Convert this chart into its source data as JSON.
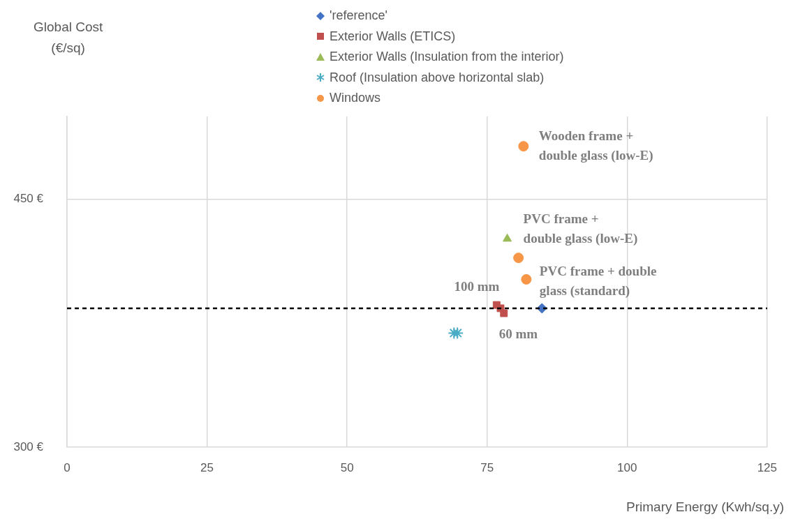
{
  "chart_data": {
    "type": "scatter",
    "xlabel": "Primary Energy (Kwh/sq.y)",
    "ylabel": "Global Cost\n(€/sq)",
    "xlim": [
      0,
      125
    ],
    "xticks": [
      0,
      25,
      50,
      75,
      100,
      125
    ],
    "ylim": [
      300,
      500
    ],
    "yticks": [
      {
        "value": 300,
        "label": "300 €"
      },
      {
        "value": 450,
        "label": "450 €"
      }
    ],
    "grid": true,
    "legend": "top",
    "series": [
      {
        "name": "'reference'",
        "color": "#4472c4",
        "marker": "diamond",
        "x": [
          84.8
        ],
        "values": [
          384
        ]
      },
      {
        "name": "Exterior Walls (ETICS)",
        "color": "#c0504d",
        "marker": "square",
        "x": [
          76.7,
          77.4,
          78.0
        ],
        "values": [
          386,
          384,
          381
        ]
      },
      {
        "name": "Exterior Walls (Insulation from the interior)",
        "color": "#9bbb59",
        "marker": "triangle",
        "x": [
          78.6
        ],
        "values": [
          426
        ]
      },
      {
        "name": "Roof (Insulation above horizontal slab)",
        "color": "#4bacc6",
        "marker": "cross",
        "x": [
          69.1,
          69.7
        ],
        "values": [
          369,
          369
        ]
      },
      {
        "name": "Windows",
        "color": "#f79646",
        "marker": "circle",
        "x": [
          81.5,
          80.6,
          82.0
        ],
        "values": [
          482,
          414.5,
          401.5
        ]
      }
    ],
    "ref_lines": [
      {
        "axis": "y",
        "value": 384,
        "color": "#000000",
        "line_style": "dashed"
      }
    ],
    "annotations": [
      {
        "text": "Wooden frame +\ndouble glass (low-E)",
        "x": 81.5,
        "y": 482
      },
      {
        "text": "PVC frame +\ndouble glass (low-E)",
        "x": 80.6,
        "y": 414.5
      },
      {
        "text": "PVC frame + double\nglass (standard)",
        "x": 82.0,
        "y": 401.5
      },
      {
        "text": "100 mm",
        "x": 76.7,
        "y": 386
      },
      {
        "text": "60 mm",
        "x": 78.0,
        "y": 381
      }
    ]
  }
}
